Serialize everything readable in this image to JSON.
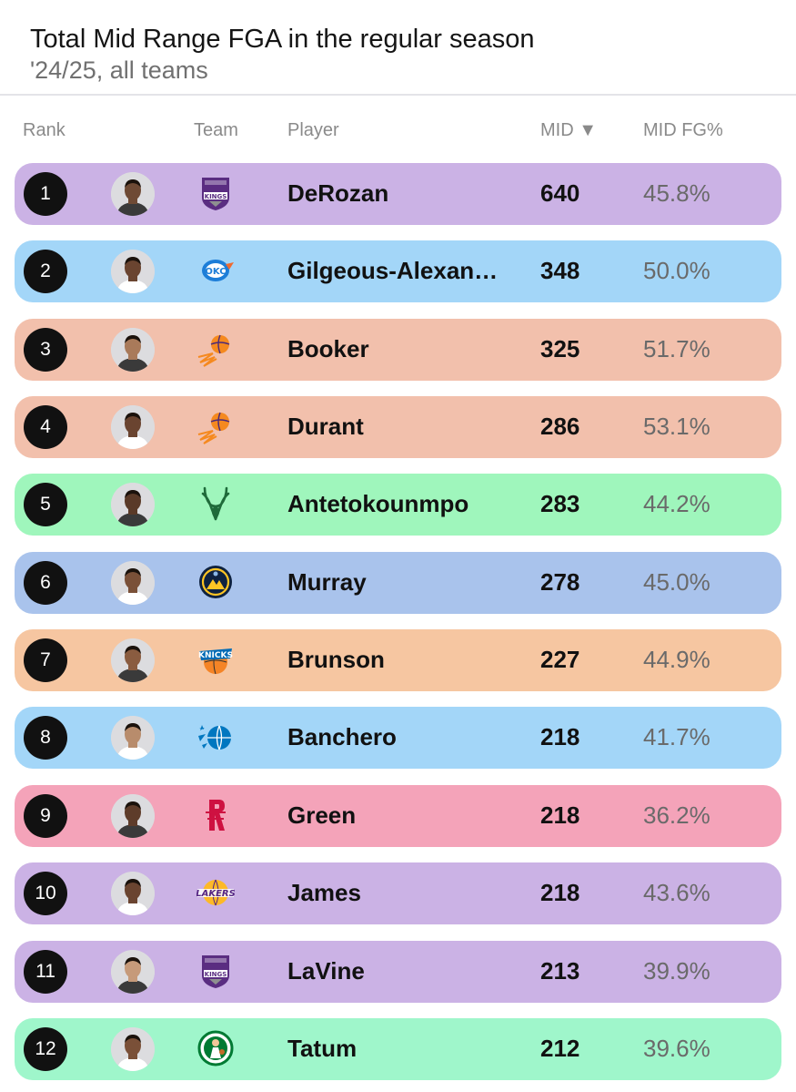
{
  "header": {
    "title": "Total Mid Range FGA in the regular season",
    "subtitle": "'24/25, all teams"
  },
  "columns": {
    "rank": "Rank",
    "team": "Team",
    "player": "Player",
    "mid": "MID ▼",
    "mid_fg": "MID FG%"
  },
  "rows": [
    {
      "rank": "1",
      "team": "kings",
      "player": "DeRozan",
      "mid": "640",
      "pct": "45.8%",
      "color": "#cbb2e5",
      "skin": "#6e4a35"
    },
    {
      "rank": "2",
      "team": "thunder",
      "player": "Gilgeous-Alexan…",
      "mid": "348",
      "pct": "50.0%",
      "color": "#a3d6f8",
      "skin": "#6a4430"
    },
    {
      "rank": "3",
      "team": "suns",
      "player": "Booker",
      "mid": "325",
      "pct": "51.7%",
      "color": "#f2c0ac",
      "skin": "#a97a5a"
    },
    {
      "rank": "4",
      "team": "suns",
      "player": "Durant",
      "mid": "286",
      "pct": "53.1%",
      "color": "#f2c0ac",
      "skin": "#6a4430"
    },
    {
      "rank": "5",
      "team": "bucks",
      "player": "Antetokounmpo",
      "mid": "283",
      "pct": "44.2%",
      "color": "#9ff6bc",
      "skin": "#5a3a28"
    },
    {
      "rank": "6",
      "team": "nuggets",
      "player": "Murray",
      "mid": "278",
      "pct": "45.0%",
      "color": "#a9c3ec",
      "skin": "#7a5038"
    },
    {
      "rank": "7",
      "team": "knicks",
      "player": "Brunson",
      "mid": "227",
      "pct": "44.9%",
      "color": "#f6c6a1",
      "skin": "#8a5c40"
    },
    {
      "rank": "8",
      "team": "magic",
      "player": "Banchero",
      "mid": "218",
      "pct": "41.7%",
      "color": "#a3d6f8",
      "skin": "#b88c6c"
    },
    {
      "rank": "9",
      "team": "rockets",
      "player": "Green",
      "mid": "218",
      "pct": "36.2%",
      "color": "#f4a3b9",
      "skin": "#5e3c2a"
    },
    {
      "rank": "10",
      "team": "lakers",
      "player": "James",
      "mid": "218",
      "pct": "43.6%",
      "color": "#cbb2e5",
      "skin": "#6a4430"
    },
    {
      "rank": "11",
      "team": "kings",
      "player": "LaVine",
      "mid": "213",
      "pct": "39.9%",
      "color": "#cbb2e5",
      "skin": "#c69a7a"
    },
    {
      "rank": "12",
      "team": "celtics",
      "player": "Tatum",
      "mid": "212",
      "pct": "39.6%",
      "color": "#9ff6cb",
      "skin": "#7a5038"
    }
  ]
}
